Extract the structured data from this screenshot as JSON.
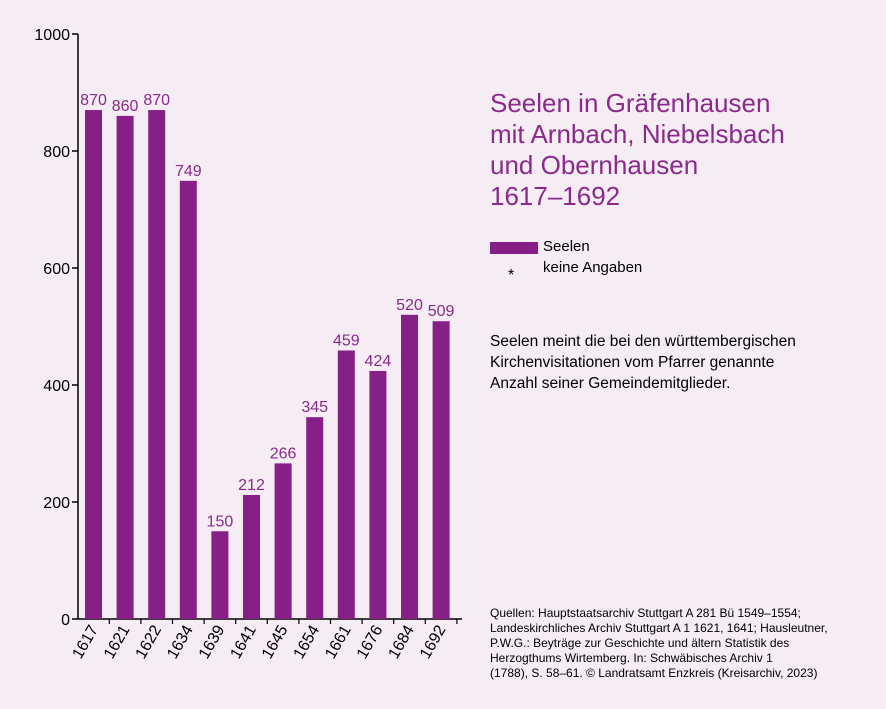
{
  "chart_data": {
    "type": "bar",
    "categories": [
      "1617",
      "1621",
      "1622",
      "1634",
      "1639",
      "1641",
      "1645",
      "1654",
      "1661",
      "1676",
      "1684",
      "1692"
    ],
    "series": [
      {
        "name": "Seelen",
        "values": [
          870,
          860,
          870,
          749,
          150,
          212,
          266,
          345,
          459,
          424,
          520,
          509
        ]
      }
    ],
    "ylim": [
      0,
      1000
    ],
    "yticks": [
      0,
      200,
      400,
      600,
      800,
      1000
    ],
    "grid": false,
    "colors": {
      "bar": "#861f86",
      "value_label": "#8a2a8b",
      "background": "#f5ecf4"
    }
  },
  "title": {
    "lines": [
      "Seelen in Gräfenhausen",
      "mit Arnbach, Niebelsbach",
      "und Obernhausen",
      "1617–1692"
    ]
  },
  "legend": {
    "bar_label": "Seelen",
    "star_symbol": "*",
    "star_label": "keine Angaben"
  },
  "note": {
    "lines": [
      "Seelen meint die bei den württembergischen",
      "Kirchenvisitationen vom Pfarrer genannte",
      "Anzahl seiner Gemeindemitglieder."
    ]
  },
  "source": {
    "lines": [
      "Quellen: Hauptstaatsarchiv Stuttgart A 281 Bü 1549–1554;",
      "Landeskirchliches Archiv Stuttgart A 1 1621, 1641; Hausleutner,",
      "P.W.G.: Beyträge zur Geschichte und ältern Statistik des",
      "Herzogthums Wirtemberg. In: Schwäbisches Archiv 1",
      "(1788), S. 58–61. © Landratsamt Enzkreis (Kreisarchiv, 2023)"
    ]
  }
}
